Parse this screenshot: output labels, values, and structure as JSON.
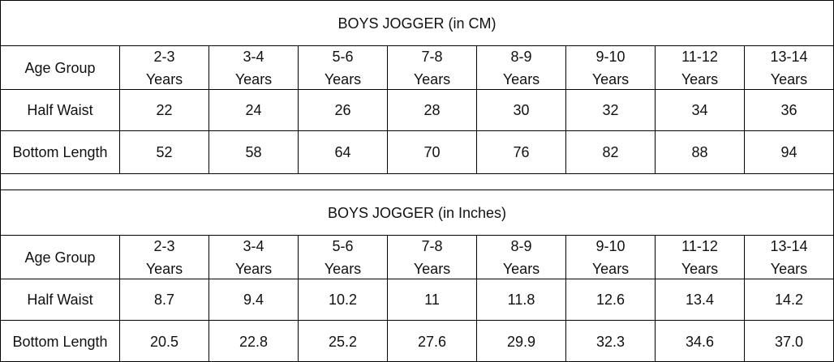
{
  "tables": [
    {
      "title": "BOYS JOGGER (in CM)",
      "header": {
        "label": "Age Group",
        "ages": [
          "2-3\nYears",
          "3-4\nYears",
          "5-6\nYears",
          "7-8\nYears",
          "8-9\nYears",
          "9-10\nYears",
          "11-12\nYears",
          "13-14\nYears"
        ]
      },
      "rows": [
        {
          "label": "Half Waist",
          "values": [
            "22",
            "24",
            "26",
            "28",
            "30",
            "32",
            "34",
            "36"
          ]
        },
        {
          "label": "Bottom Length",
          "values": [
            "52",
            "58",
            "64",
            "70",
            "76",
            "82",
            "88",
            "94"
          ]
        }
      ]
    },
    {
      "title": "BOYS JOGGER (in Inches)",
      "header": {
        "label": "Age Group",
        "ages": [
          "2-3\nYears",
          "3-4\nYears",
          "5-6\nYears",
          "7-8\nYears",
          "8-9\nYears",
          "9-10\nYears",
          "11-12\nYears",
          "13-14\nYears"
        ]
      },
      "rows": [
        {
          "label": "Half Waist",
          "values": [
            "8.7",
            "9.4",
            "10.2",
            "11",
            "11.8",
            "12.6",
            "13.4",
            "14.2"
          ]
        },
        {
          "label": "Bottom Length",
          "values": [
            "20.5",
            "22.8",
            "25.2",
            "27.6",
            "29.9",
            "32.3",
            "34.6",
            "37.0"
          ]
        }
      ]
    }
  ]
}
